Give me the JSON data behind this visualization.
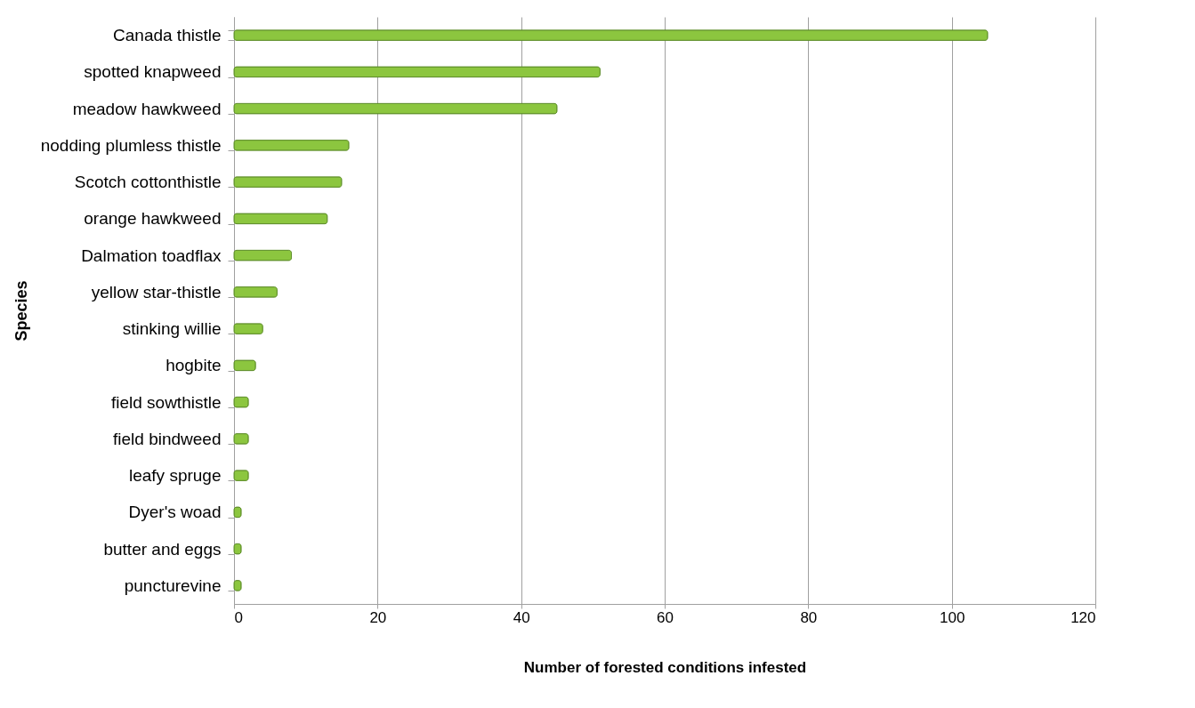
{
  "chart_data": {
    "type": "bar",
    "orientation": "horizontal",
    "xlabel": "Number of forested conditions infested",
    "ylabel": "Species",
    "categories": [
      "Canada thistle",
      "spotted knapweed",
      "meadow hawkweed",
      "nodding plumless thistle",
      "Scotch cottonthistle",
      "orange hawkweed",
      "Dalmation toadflax",
      "yellow star-thistle",
      "stinking willie",
      "hogbite",
      "field sowthistle",
      "field bindweed",
      "leafy spruge",
      "Dyer's woad",
      "butter and eggs",
      "puncturevine"
    ],
    "values": [
      105,
      51,
      45,
      16,
      15,
      13,
      8,
      6,
      4,
      3,
      2,
      2,
      2,
      1,
      1,
      1
    ],
    "color": "#8cc63f",
    "xlim": [
      0,
      120
    ],
    "xticks": [
      0,
      20,
      40,
      60,
      80,
      100,
      120
    ],
    "grid": "x"
  }
}
